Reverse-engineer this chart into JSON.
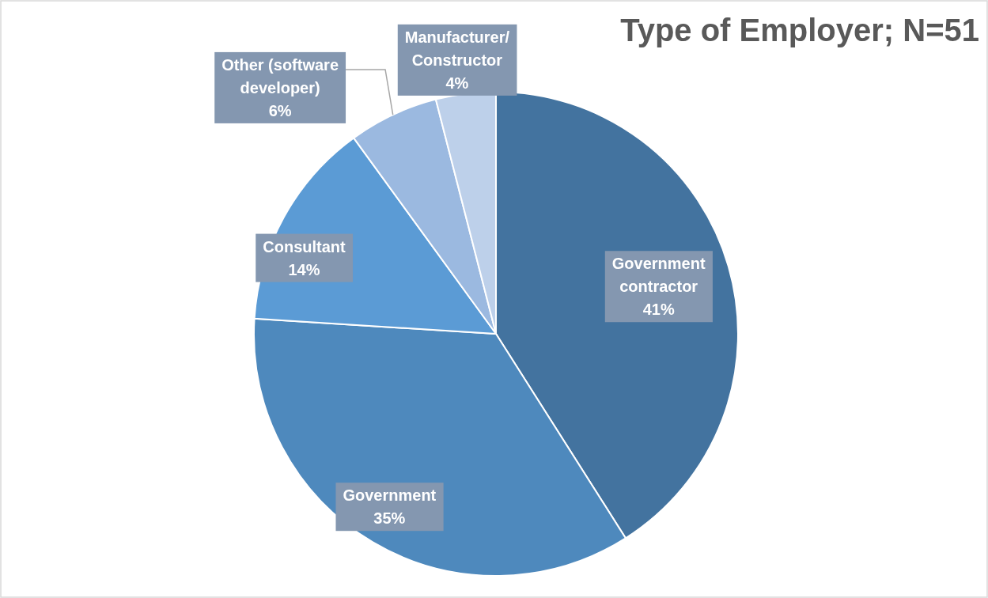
{
  "chart_data": {
    "type": "pie",
    "title": "Type of Employer; N=51",
    "categories": [
      "Government contractor",
      "Government",
      "Consultant",
      "Other (software developer)",
      "Manufacturer/ Constructor"
    ],
    "values": [
      41,
      35,
      14,
      6,
      4
    ],
    "colors": [
      "#43739f",
      "#4e89bd",
      "#5b9bd5",
      "#9bb9e0",
      "#bdd0ea"
    ],
    "value_labels": [
      "41%",
      "35%",
      "14%",
      "6%",
      "4%"
    ]
  }
}
